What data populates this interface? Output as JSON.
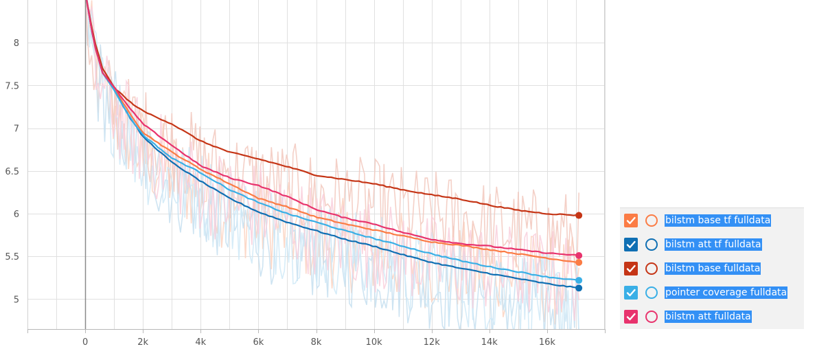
{
  "chart_data": {
    "type": "line",
    "title": "",
    "xlabel": "",
    "ylabel": "",
    "xlim": [
      -2000,
      18000
    ],
    "ylim": [
      4.65,
      8.5
    ],
    "x_ticks": [
      0,
      2000,
      4000,
      6000,
      8000,
      10000,
      12000,
      14000,
      16000
    ],
    "x_tick_labels": [
      "0",
      "2k",
      "4k",
      "6k",
      "8k",
      "10k",
      "12k",
      "14k",
      "16k"
    ],
    "y_ticks": [
      5,
      5.5,
      6,
      6.5,
      7,
      7.5,
      8
    ],
    "y_tick_labels": [
      "5",
      "5.5",
      "6",
      "6.5",
      "7",
      "7.5",
      "8"
    ],
    "grid": true,
    "legend_position": "bottom-right",
    "x": [
      0,
      300,
      600,
      1000,
      1500,
      2000,
      3000,
      4000,
      5000,
      6000,
      7000,
      8000,
      9000,
      10000,
      11000,
      12000,
      13000,
      14000,
      15000,
      16000,
      17100
    ],
    "series": [
      {
        "name": "bilstm base tf fulldata",
        "color": "#fb7c45",
        "raw_color": "#fcd2c0",
        "values": [
          8.6,
          8.0,
          7.65,
          7.45,
          7.2,
          6.95,
          6.72,
          6.52,
          6.35,
          6.18,
          6.08,
          5.96,
          5.88,
          5.81,
          5.74,
          5.67,
          5.63,
          5.58,
          5.53,
          5.48,
          5.43
        ]
      },
      {
        "name": "bilstm att tf fulldata",
        "color": "#0f6fb3",
        "raw_color": "#c6dff0",
        "values": [
          8.6,
          8.0,
          7.65,
          7.45,
          7.15,
          6.9,
          6.6,
          6.38,
          6.18,
          6.02,
          5.9,
          5.8,
          5.7,
          5.62,
          5.52,
          5.43,
          5.36,
          5.3,
          5.24,
          5.18,
          5.13
        ]
      },
      {
        "name": "bilstm base fulldata",
        "color": "#c53516",
        "raw_color": "#f2c8bd",
        "values": [
          8.6,
          8.05,
          7.7,
          7.48,
          7.32,
          7.2,
          7.05,
          6.85,
          6.72,
          6.64,
          6.55,
          6.45,
          6.4,
          6.35,
          6.28,
          6.22,
          6.17,
          6.1,
          6.04,
          6.0,
          5.98
        ]
      },
      {
        "name": "pointer coverage fulldata",
        "color": "#39afe6",
        "raw_color": "#cfe9f7",
        "values": [
          8.6,
          8.0,
          7.65,
          7.45,
          7.15,
          6.92,
          6.65,
          6.48,
          6.28,
          6.13,
          6.0,
          5.9,
          5.8,
          5.71,
          5.62,
          5.53,
          5.45,
          5.38,
          5.32,
          5.26,
          5.22
        ]
      },
      {
        "name": "bilstm att fulldata",
        "color": "#e8336d",
        "raw_color": "#f9cfdc",
        "values": [
          8.6,
          8.0,
          7.65,
          7.48,
          7.25,
          7.05,
          6.8,
          6.56,
          6.42,
          6.33,
          6.2,
          6.05,
          5.95,
          5.88,
          5.78,
          5.7,
          5.65,
          5.62,
          5.58,
          5.54,
          5.51
        ]
      }
    ]
  },
  "legend": {
    "items": [
      {
        "label": "bilstm base tf fulldata",
        "color": "#fb7c45"
      },
      {
        "label": "bilstm att tf fulldata",
        "color": "#0f6fb3"
      },
      {
        "label": "bilstm base fulldata",
        "color": "#c53516"
      },
      {
        "label": "pointer coverage fulldata",
        "color": "#39afe6"
      },
      {
        "label": "bilstm att fulldata",
        "color": "#e8336d"
      }
    ]
  }
}
